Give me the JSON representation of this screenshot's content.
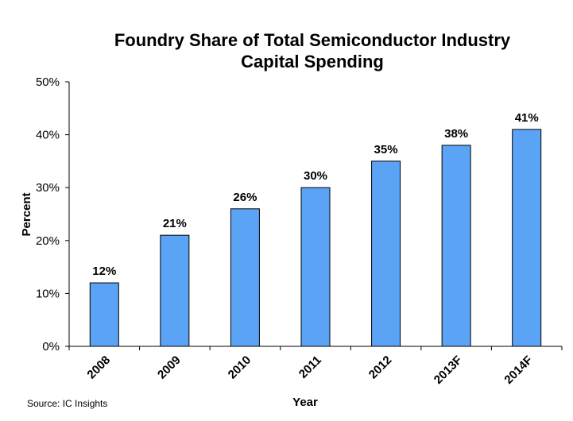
{
  "chart_data": {
    "type": "bar",
    "title_lines": [
      "Foundry Share of Total Semiconductor Industry",
      "Capital Spending"
    ],
    "categories": [
      "2008",
      "2009",
      "2010",
      "2011",
      "2012",
      "2013F",
      "2014F"
    ],
    "values": [
      12,
      21,
      26,
      30,
      35,
      38,
      41
    ],
    "data_labels": [
      "12%",
      "21%",
      "26%",
      "30%",
      "35%",
      "38%",
      "41%"
    ],
    "xlabel": "Year",
    "ylabel": "Percent",
    "ylim": [
      0,
      50
    ],
    "yticks": [
      0,
      10,
      20,
      30,
      40,
      50
    ],
    "ytick_labels": [
      "0%",
      "10%",
      "20%",
      "30%",
      "40%",
      "50%"
    ],
    "grid": false,
    "legend": "none",
    "bar_color": "#5BA3F5",
    "source": "Source: IC Insights"
  }
}
